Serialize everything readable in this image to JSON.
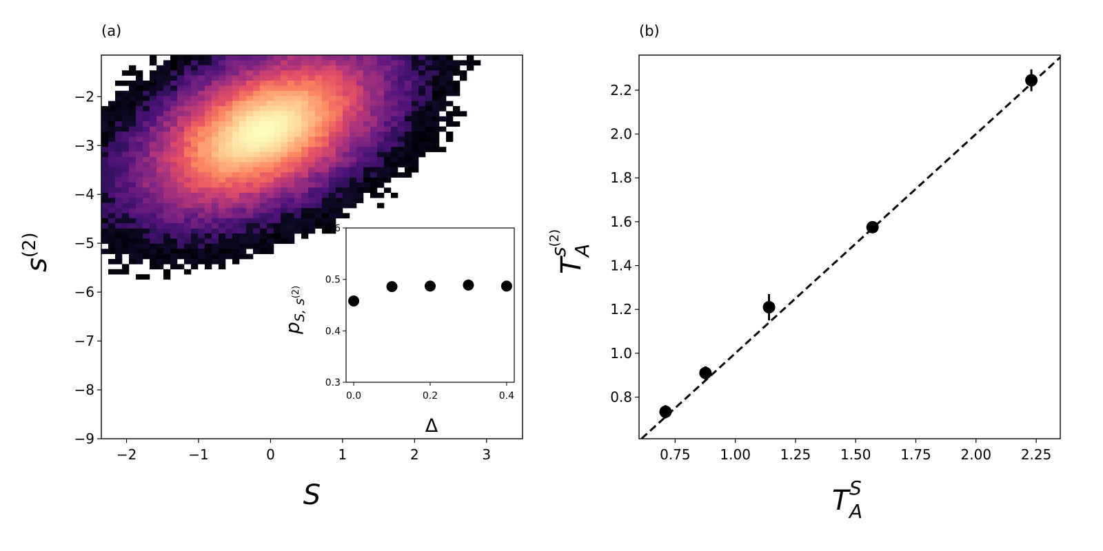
{
  "figure": {
    "panel_a_label": "(a)",
    "panel_b_label": "(b)"
  },
  "chart_data": [
    {
      "type": "heatmap",
      "panel": "(a)",
      "xlabel": "S",
      "ylabel": "s(2)",
      "xlim": [
        -2.35,
        3.5
      ],
      "ylim": [
        -9,
        -1.15
      ],
      "xticks": [
        "−2",
        "−1",
        "0",
        "1",
        "2",
        "3"
      ],
      "yticks": [
        "−2",
        "−3",
        "−4",
        "−5",
        "−6",
        "−7",
        "−8",
        "−9"
      ],
      "colormap": "magma",
      "density": {
        "center_S": -0.1,
        "center_s2": -2.7,
        "sigma_S": 0.75,
        "sigma_s2": 0.75,
        "correlation": 0.47
      },
      "inset": {
        "type": "scatter",
        "xlabel": "Δ",
        "ylabel": "p_{S,s(2)}",
        "xlim": [
          -0.02,
          0.42
        ],
        "ylim": [
          0.3,
          0.6
        ],
        "xticks": [
          "0.0",
          "0.2",
          "0.4"
        ],
        "yticks": [
          "0.3",
          "0.4",
          "0.5",
          "0.6"
        ],
        "x": [
          0.0,
          0.1,
          0.2,
          0.3,
          0.4
        ],
        "y": [
          0.458,
          0.486,
          0.487,
          0.489,
          0.487
        ]
      }
    },
    {
      "type": "scatter",
      "panel": "(b)",
      "xlabel": "T_A^S",
      "ylabel": "T_A^{s(2)}",
      "xlim": [
        0.6,
        2.35
      ],
      "ylim": [
        0.61,
        2.36
      ],
      "xticks": [
        "0.75",
        "1.00",
        "1.25",
        "1.50",
        "1.75",
        "2.00",
        "2.25"
      ],
      "yticks": [
        "0.8",
        "1.0",
        "1.2",
        "1.4",
        "1.6",
        "1.8",
        "2.0",
        "2.2"
      ],
      "reference_line": "y = x (dashed)",
      "x": [
        0.71,
        0.876,
        1.14,
        1.57,
        2.23
      ],
      "y": [
        0.733,
        0.91,
        1.21,
        1.575,
        2.245
      ],
      "yerr": [
        0.03,
        0.03,
        0.06,
        0.02,
        0.05
      ],
      "xerr": [
        0.015,
        0.01,
        0.015,
        0.01,
        0.02
      ]
    }
  ]
}
